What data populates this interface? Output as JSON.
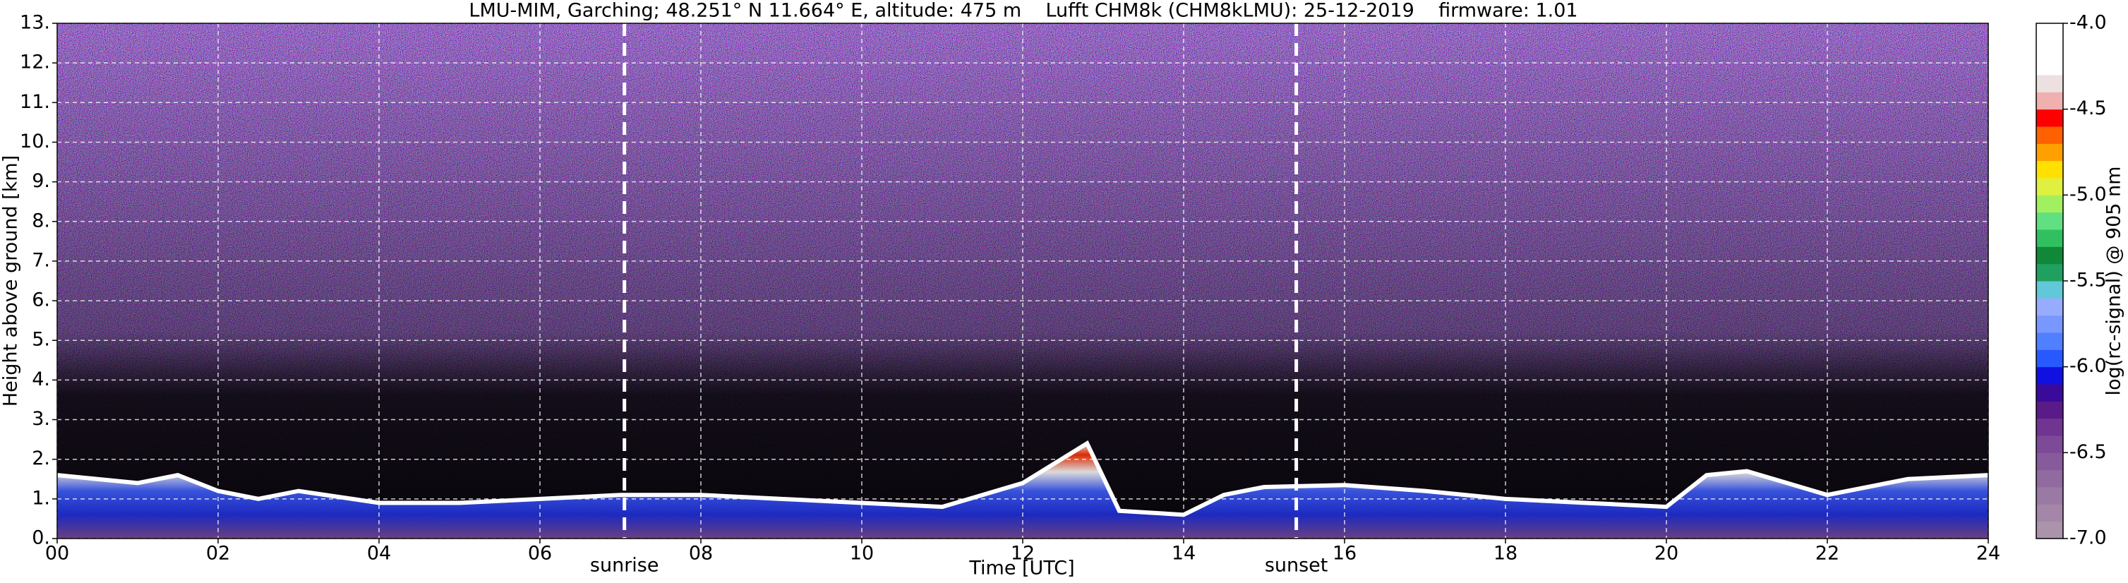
{
  "chart_data": {
    "type": "area",
    "title": "LMU-MIM, Garching; 48.251° N 11.664° E, altitude: 475 m    Lufft CHM8k (CHM8kLMU): 25-12-2019    firmware: 1.01",
    "x_label": "Time [UTC]",
    "y_label": "Height above ground [km]",
    "xlim": [
      0,
      24
    ],
    "xticks": [
      {
        "value": 0,
        "label": "00"
      },
      {
        "value": 2,
        "label": "02"
      },
      {
        "value": 4,
        "label": "04"
      },
      {
        "value": 6,
        "label": "06"
      },
      {
        "value": 8,
        "label": "08"
      },
      {
        "value": 10,
        "label": "10"
      },
      {
        "value": 12,
        "label": "12"
      },
      {
        "value": 14,
        "label": "14"
      },
      {
        "value": 16,
        "label": "16"
      },
      {
        "value": 18,
        "label": "18"
      },
      {
        "value": 20,
        "label": "20"
      },
      {
        "value": 22,
        "label": "22"
      },
      {
        "value": 24,
        "label": "24"
      }
    ],
    "ylim": [
      0,
      13
    ],
    "yticks": [
      {
        "value": 0,
        "label": "0."
      },
      {
        "value": 1,
        "label": "1."
      },
      {
        "value": 2,
        "label": "2."
      },
      {
        "value": 3,
        "label": "3."
      },
      {
        "value": 4,
        "label": "4."
      },
      {
        "value": 5,
        "label": "5."
      },
      {
        "value": 6,
        "label": "6."
      },
      {
        "value": 7,
        "label": "7."
      },
      {
        "value": 8,
        "label": "8."
      },
      {
        "value": 9,
        "label": "9."
      },
      {
        "value": 10,
        "label": "10."
      },
      {
        "value": 11,
        "label": "11."
      },
      {
        "value": 12,
        "label": "12."
      },
      {
        "value": 13,
        "label": "13."
      }
    ],
    "grid": true,
    "x": [
      0,
      0.5,
      1,
      1.5,
      2,
      2.5,
      3,
      4,
      5,
      6,
      7,
      8,
      9,
      10,
      11,
      12,
      12.8,
      13.2,
      14,
      14.5,
      15,
      16,
      17,
      18,
      19,
      20,
      20.5,
      21,
      22,
      23,
      24
    ],
    "series": [
      {
        "color": "#ffffff",
        "values": [
          1.6,
          1.5,
          1.4,
          1.6,
          1.2,
          1.0,
          1.2,
          0.9,
          0.9,
          1.0,
          1.1,
          1.1,
          1.0,
          0.9,
          0.8,
          1.4,
          2.4,
          0.7,
          0.6,
          1.1,
          1.3,
          1.35,
          1.2,
          1.0,
          0.9,
          0.8,
          1.6,
          1.7,
          1.1,
          1.5,
          1.6
        ]
      }
    ],
    "annotations": [
      {
        "label": "sunrise",
        "x": 7.05
      },
      {
        "label": "sunset",
        "x": 15.4
      }
    ],
    "colorbar": {
      "label": "log(rc-signal) @ 905 nm",
      "clim": [
        -7,
        -4
      ],
      "ticks": [
        {
          "value": -7,
          "label": "-7.0"
        },
        {
          "value": -6.5,
          "label": "-6.5"
        },
        {
          "value": -6,
          "label": "-6.0"
        },
        {
          "value": -5.5,
          "label": "-5.5"
        },
        {
          "value": -5,
          "label": "-5.0"
        },
        {
          "value": -4.5,
          "label": "-4.5"
        },
        {
          "value": -4,
          "label": "-4.0"
        }
      ],
      "colors": [
        "#ab93ab",
        "#a386a8",
        "#9a79a4",
        "#916aa0",
        "#875b9b",
        "#7c4a96",
        "#6f3590",
        "#5a1a88",
        "#3a0a9a",
        "#1010e0",
        "#2858ff",
        "#5080ff",
        "#7898ff",
        "#98acff",
        "#60c8d8",
        "#20a060",
        "#108838",
        "#30c060",
        "#60e080",
        "#a0f060",
        "#e0f040",
        "#ffe000",
        "#ffa000",
        "#ff6000",
        "#ff0000",
        "#f0b0b0",
        "#ece0e0",
        "#ffffff",
        "#ffffff",
        "#ffffff"
      ]
    }
  }
}
